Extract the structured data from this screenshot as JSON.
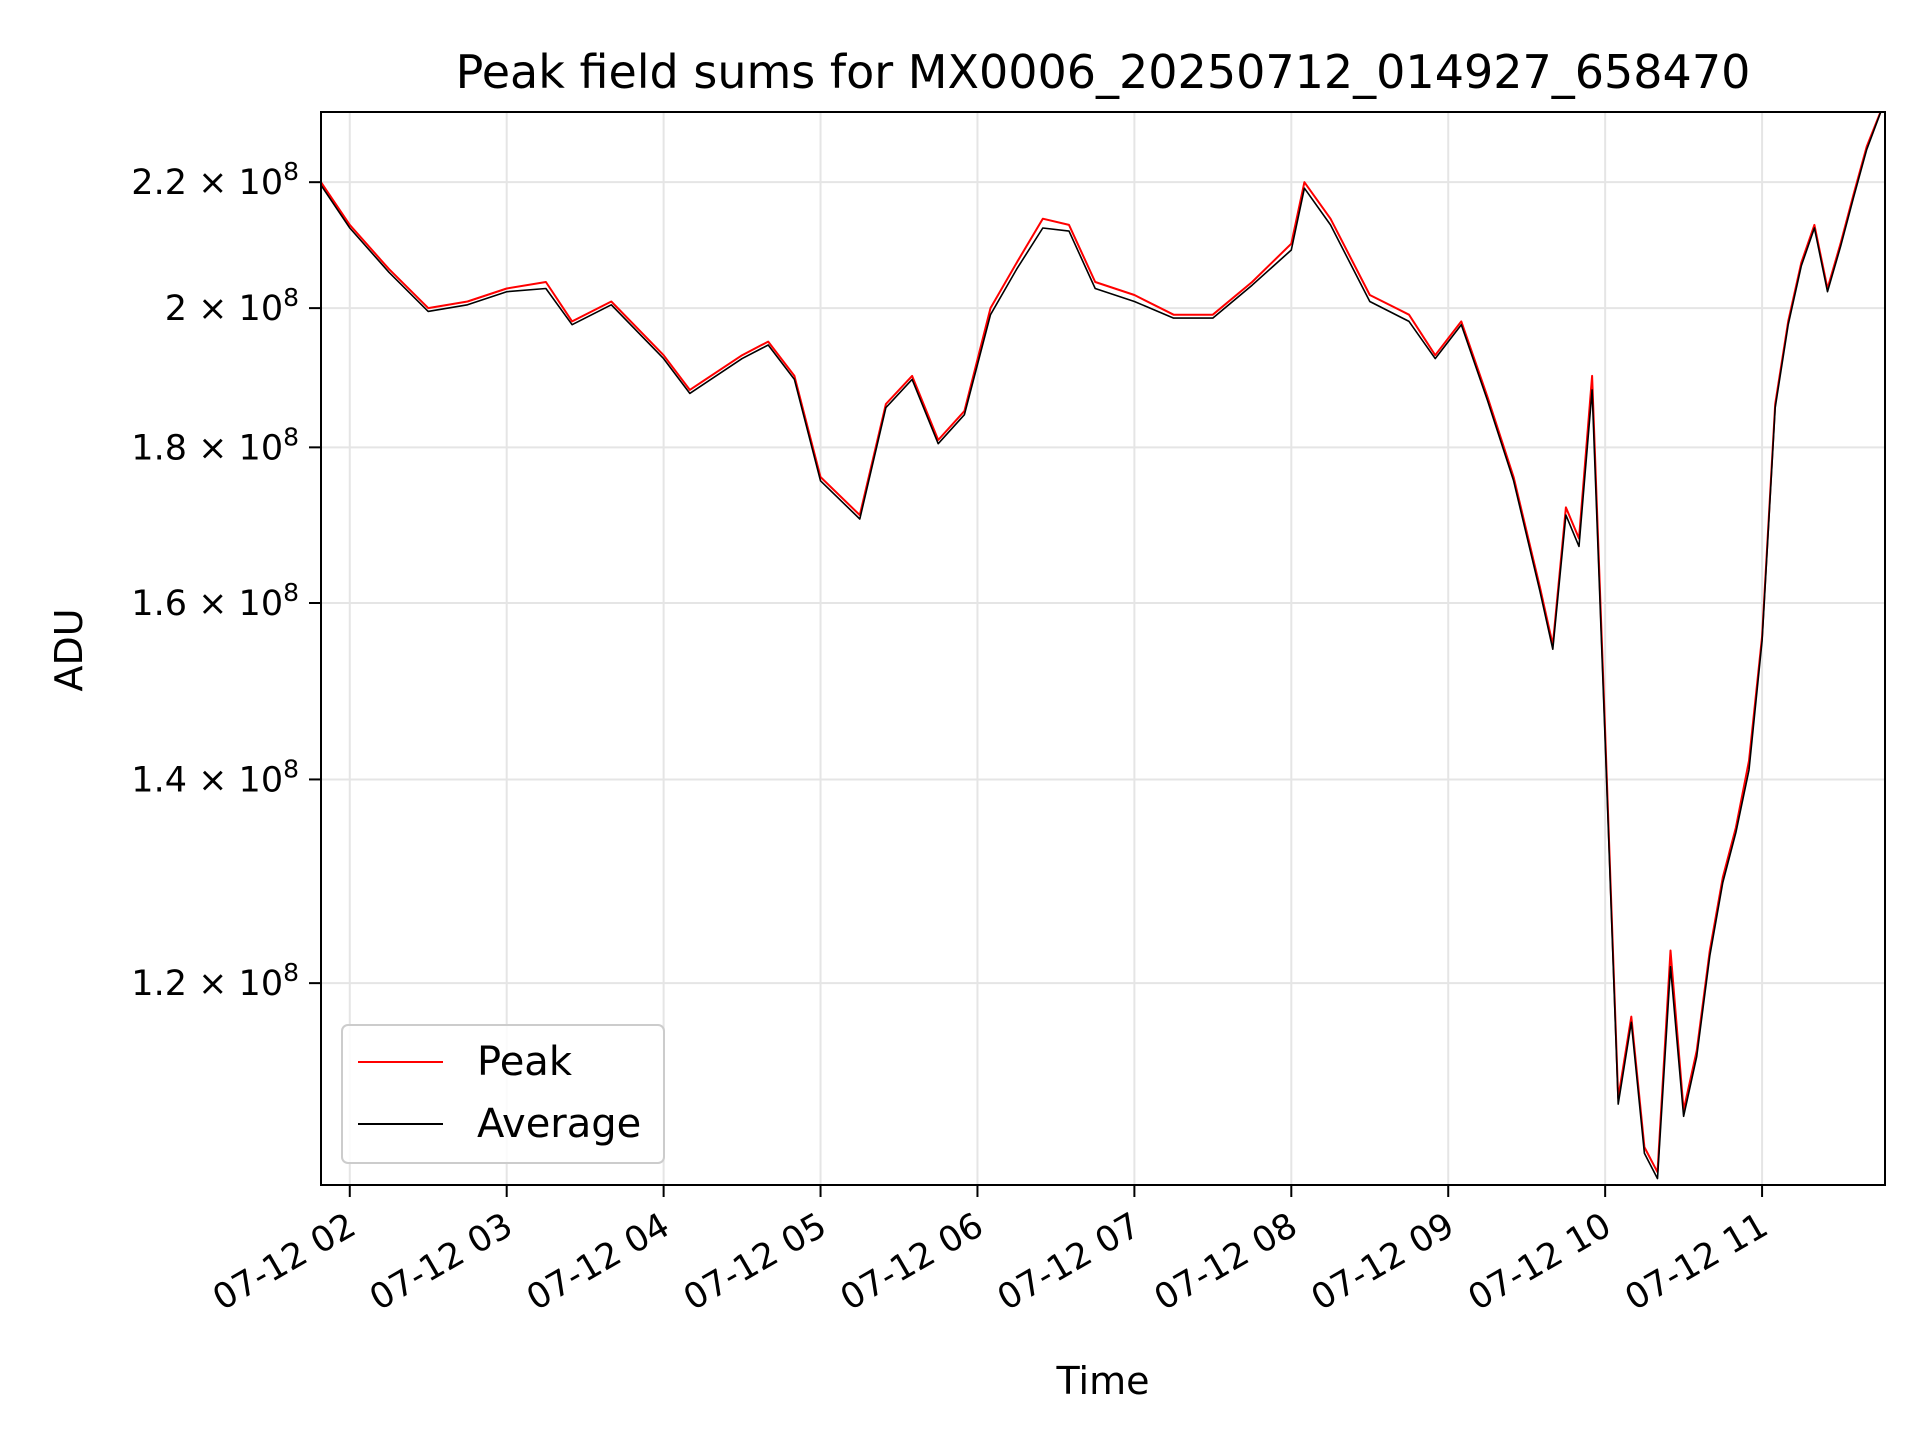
{
  "chart_data": {
    "type": "line",
    "title": "Peak field sums for MX0006_20250712_014927_658470",
    "xlabel": "Time",
    "ylabel": "ADU",
    "y_scale": "log",
    "grid": true,
    "legend_position": "lower-left",
    "xlim": [
      "07-12 01:49",
      "07-12 11:47"
    ],
    "ylim": [
      103000000,
      232000000
    ],
    "x_ticks": [
      "07-12 02",
      "07-12 03",
      "07-12 04",
      "07-12 05",
      "07-12 06",
      "07-12 07",
      "07-12 08",
      "07-12 09",
      "07-12 10",
      "07-12 11"
    ],
    "y_ticks": [
      {
        "value": 120000000,
        "mantissa": "1.2",
        "exponent": "8"
      },
      {
        "value": 140000000,
        "mantissa": "1.4",
        "exponent": "8"
      },
      {
        "value": 160000000,
        "mantissa": "1.6",
        "exponent": "8"
      },
      {
        "value": 180000000,
        "mantissa": "1.8",
        "exponent": "8"
      },
      {
        "value": 200000000,
        "mantissa": "2",
        "exponent": "8"
      },
      {
        "value": 220000000,
        "mantissa": "2.2",
        "exponent": "8"
      }
    ],
    "x": [
      "07-12 01:49",
      "07-12 02:00",
      "07-12 02:15",
      "07-12 02:30",
      "07-12 02:45",
      "07-12 03:00",
      "07-12 03:15",
      "07-12 03:25",
      "07-12 03:40",
      "07-12 04:00",
      "07-12 04:10",
      "07-12 04:30",
      "07-12 04:40",
      "07-12 04:50",
      "07-12 05:00",
      "07-12 05:15",
      "07-12 05:25",
      "07-12 05:35",
      "07-12 05:45",
      "07-12 05:55",
      "07-12 06:05",
      "07-12 06:15",
      "07-12 06:25",
      "07-12 06:35",
      "07-12 06:45",
      "07-12 07:00",
      "07-12 07:15",
      "07-12 07:30",
      "07-12 07:45",
      "07-12 08:00",
      "07-12 08:05",
      "07-12 08:15",
      "07-12 08:30",
      "07-12 08:45",
      "07-12 08:55",
      "07-12 09:05",
      "07-12 09:15",
      "07-12 09:25",
      "07-12 09:35",
      "07-12 09:40",
      "07-12 09:45",
      "07-12 09:50",
      "07-12 09:55",
      "07-12 10:00",
      "07-12 10:05",
      "07-12 10:10",
      "07-12 10:15",
      "07-12 10:20",
      "07-12 10:25",
      "07-12 10:30",
      "07-12 10:35",
      "07-12 10:40",
      "07-12 10:45",
      "07-12 10:50",
      "07-12 10:55",
      "07-12 11:00",
      "07-12 11:05",
      "07-12 11:10",
      "07-12 11:15",
      "07-12 11:20",
      "07-12 11:25",
      "07-12 11:30",
      "07-12 11:35",
      "07-12 11:40",
      "07-12 11:47"
    ],
    "series": [
      {
        "name": "Peak",
        "color": "#ff0000",
        "values": [
          220000000,
          213000000,
          206000000,
          200000000,
          201000000,
          203000000,
          204000000,
          198000000,
          201000000,
          193000000,
          188000000,
          193000000,
          195000000,
          190000000,
          176000000,
          171000000,
          186000000,
          190000000,
          181000000,
          185000000,
          200000000,
          207000000,
          214000000,
          213000000,
          204000000,
          202000000,
          199000000,
          199000000,
          204000000,
          210000000,
          220000000,
          214000000,
          202000000,
          199000000,
          193000000,
          198000000,
          187000000,
          176000000,
          162000000,
          155000000,
          172000000,
          168000000,
          190000000,
          145000000,
          110000000,
          117000000,
          106000000,
          104000000,
          123000000,
          109000000,
          114000000,
          123000000,
          130000000,
          135000000,
          142000000,
          156000000,
          186000000,
          198000000,
          207000000,
          213000000,
          203000000,
          210000000,
          218000000,
          226000000,
          234000000
        ]
      },
      {
        "name": "Average",
        "color": "#000000",
        "values": [
          219500000,
          212500000,
          205500000,
          199500000,
          200500000,
          202500000,
          203000000,
          197500000,
          200500000,
          192500000,
          187500000,
          192500000,
          194500000,
          189500000,
          175500000,
          170500000,
          185500000,
          189500000,
          180500000,
          184500000,
          199000000,
          206000000,
          212500000,
          212000000,
          203000000,
          201000000,
          198500000,
          198500000,
          203500000,
          209000000,
          219000000,
          213000000,
          201000000,
          198000000,
          192500000,
          197500000,
          186500000,
          175500000,
          161500000,
          154500000,
          171000000,
          167000000,
          188000000,
          144000000,
          109500000,
          116500000,
          105500000,
          103500000,
          121500000,
          108500000,
          113500000,
          122500000,
          129500000,
          134500000,
          141000000,
          155500000,
          185500000,
          197500000,
          206500000,
          212500000,
          202500000,
          209500000,
          217500000,
          225500000,
          234000000
        ]
      }
    ]
  }
}
